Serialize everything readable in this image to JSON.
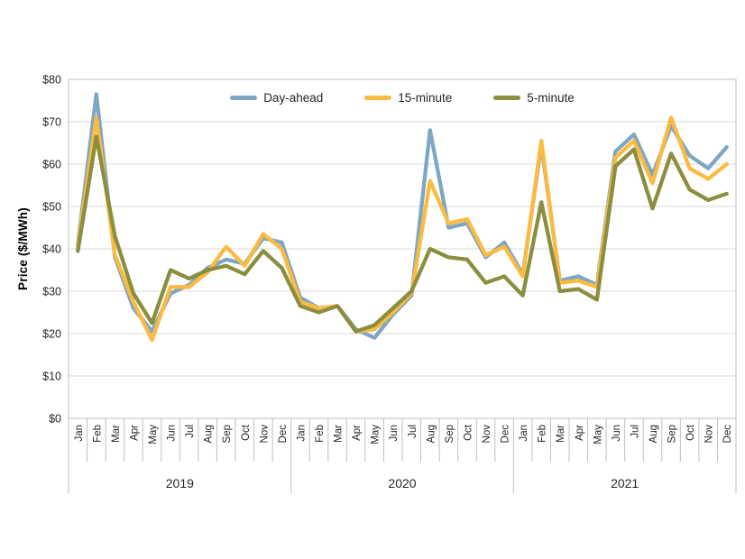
{
  "page": {
    "background": "#ffffff"
  },
  "colors": {
    "grid": "#D9D9D9",
    "axis_border": "#BFBFBF",
    "tick_separator": "#BFBFBF",
    "text": "#262626",
    "day_ahead": "#7EA6C5",
    "fifteen_minute": "#FBBA40",
    "five_minute": "#8B8E3E"
  },
  "chart_data": {
    "type": "line",
    "title": "",
    "xlabel": "",
    "ylabel": "Price ($/MWh)",
    "grid": true,
    "legend_position": "top-center",
    "y_axis": {
      "min": 0,
      "max": 80,
      "step": 10,
      "tick_labels": [
        "$0",
        "$10",
        "$20",
        "$30",
        "$40",
        "$50",
        "$60",
        "$70",
        "$80"
      ]
    },
    "x_axis": {
      "month_labels": [
        "Jan",
        "Feb",
        "Mar",
        "Apr",
        "May",
        "Jun",
        "Jul",
        "Aug",
        "Sep",
        "Oct",
        "Nov",
        "Dec"
      ],
      "years": [
        "2019",
        "2020",
        "2021"
      ],
      "months_per_year": 12
    },
    "series": [
      {
        "name": "Day-ahead",
        "color": "#7EA6C5",
        "values": [
          41,
          76.5,
          38,
          26,
          20.5,
          29.5,
          31.5,
          35.5,
          37.5,
          36.5,
          42.5,
          41.5,
          28.5,
          26,
          26.5,
          21,
          19,
          24.5,
          29,
          68,
          45,
          46,
          38,
          41.5,
          34,
          64.5,
          32.5,
          33.5,
          31.5,
          63,
          67,
          57.5,
          69,
          62,
          59,
          64
        ]
      },
      {
        "name": "15-minute",
        "color": "#FBBA40",
        "values": [
          40.5,
          71,
          38.5,
          27.5,
          18.5,
          31,
          31,
          34.5,
          40.5,
          36,
          43.5,
          40,
          27.5,
          26,
          26.5,
          20.5,
          21,
          25,
          29.5,
          56,
          46,
          47,
          38.5,
          40.5,
          33.5,
          65.5,
          32,
          32.5,
          31,
          61.5,
          65.5,
          55.5,
          71,
          59,
          56.5,
          60
        ]
      },
      {
        "name": "5-minute",
        "color": "#8B8E3E",
        "values": [
          39.5,
          66.5,
          43,
          29.5,
          22.5,
          35,
          33,
          35,
          36,
          34,
          39.5,
          35.5,
          26.5,
          25,
          26.5,
          20.5,
          22,
          26,
          30,
          40,
          38,
          37.5,
          32,
          33.5,
          29,
          51,
          30,
          30.5,
          28,
          59.5,
          63.5,
          49.5,
          62.5,
          54,
          51.5,
          53
        ]
      }
    ]
  }
}
